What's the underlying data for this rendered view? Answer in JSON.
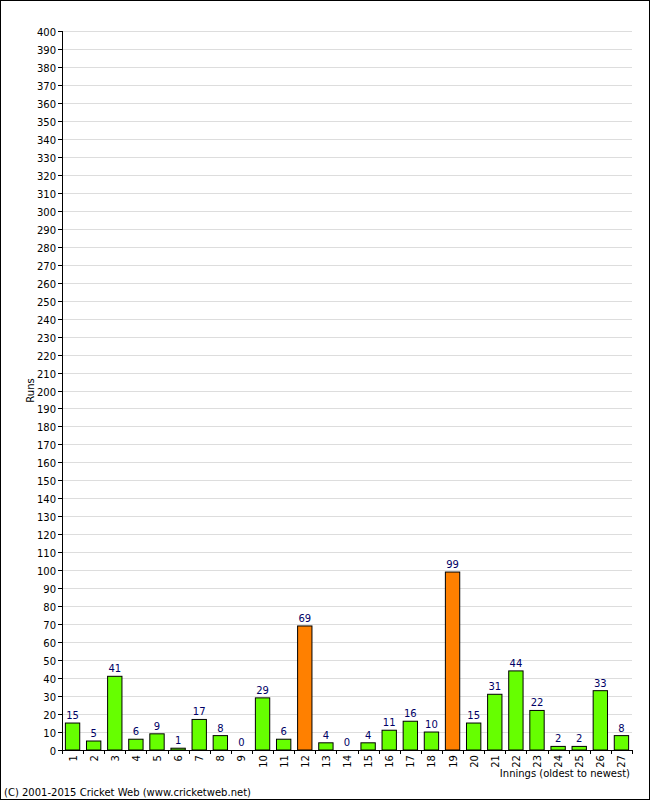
{
  "chart_data": {
    "type": "bar",
    "ylabel": "Runs",
    "xlabel": "Innings (oldest to newest)",
    "annotations": [
      "(C) 2001-2015 Cricket Web (www.cricketweb.net)"
    ],
    "categories": [
      "1",
      "2",
      "3",
      "4",
      "5",
      "6",
      "7",
      "8",
      "9",
      "10",
      "11",
      "12",
      "13",
      "14",
      "15",
      "16",
      "17",
      "18",
      "19",
      "20",
      "21",
      "22",
      "23",
      "24",
      "25",
      "26",
      "27"
    ],
    "values": [
      15,
      5,
      41,
      6,
      9,
      1,
      17,
      8,
      0,
      29,
      6,
      69,
      4,
      0,
      4,
      11,
      16,
      10,
      99,
      15,
      31,
      44,
      22,
      2,
      2,
      33,
      8
    ],
    "colors": [
      "#66ff00",
      "#66ff00",
      "#66ff00",
      "#66ff00",
      "#66ff00",
      "#66ff00",
      "#66ff00",
      "#66ff00",
      "#66ff00",
      "#66ff00",
      "#66ff00",
      "#ff8000",
      "#66ff00",
      "#66ff00",
      "#66ff00",
      "#66ff00",
      "#66ff00",
      "#66ff00",
      "#ff8000",
      "#66ff00",
      "#66ff00",
      "#66ff00",
      "#66ff00",
      "#66ff00",
      "#66ff00",
      "#66ff00",
      "#66ff00"
    ],
    "ylim": [
      0,
      400
    ],
    "yticks": [
      0,
      10,
      20,
      30,
      40,
      50,
      60,
      70,
      80,
      90,
      100,
      110,
      120,
      130,
      140,
      150,
      160,
      170,
      180,
      190,
      200,
      210,
      220,
      230,
      240,
      250,
      260,
      270,
      280,
      290,
      300,
      310,
      320,
      330,
      340,
      350,
      360,
      370,
      380,
      390,
      400
    ],
    "grid": true,
    "data_labels": true
  }
}
